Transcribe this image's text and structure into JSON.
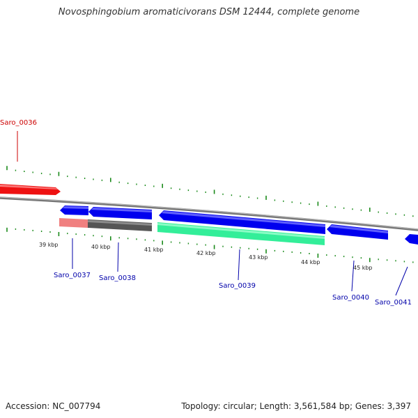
{
  "header": {
    "title": "Novosphingobium aromaticivorans DSM 12444, complete genome"
  },
  "footer": {
    "accession": "Accession: NC_007794",
    "summary": "Topology: circular; Length: 3,561,584 bp; Genes: 3,397"
  },
  "colors": {
    "forward_gene": "#ee1111",
    "reverse_gene": "#0000ee",
    "tick": "#1a8a1a",
    "backbone": "#888888",
    "label_forward": "#cc0000",
    "label_reverse": "#0000aa"
  },
  "scale_labels": [
    "39 kbp",
    "40 kbp",
    "41 kbp",
    "42 kbp",
    "43 kbp",
    "44 kbp",
    "45 kbp"
  ],
  "genes": [
    {
      "name": "Saro_0036",
      "strand": "+"
    },
    {
      "name": "Saro_0037",
      "strand": "-"
    },
    {
      "name": "Saro_0038",
      "strand": "-"
    },
    {
      "name": "Saro_0039",
      "strand": "-"
    },
    {
      "name": "Saro_0040",
      "strand": "-"
    },
    {
      "name": "Saro_0041",
      "strand": "-"
    }
  ]
}
